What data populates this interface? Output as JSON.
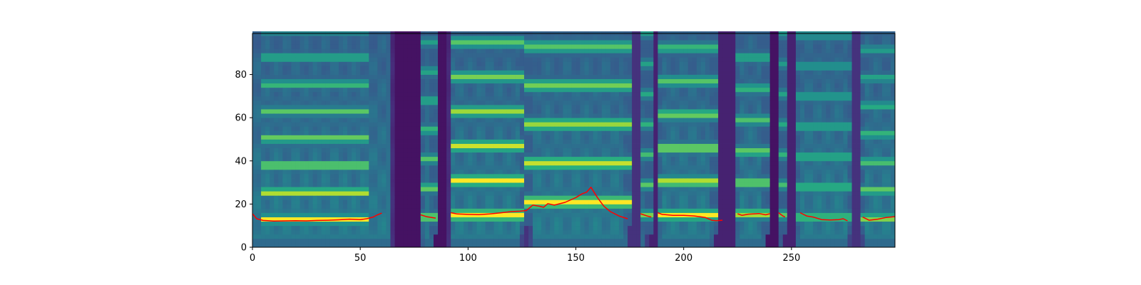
{
  "chart_data": {
    "type": "heatmap",
    "title": "",
    "xlabel": "",
    "ylabel": "",
    "xlim": [
      0,
      298
    ],
    "ylim": [
      0,
      99
    ],
    "x_ticks": [
      0,
      50,
      100,
      150,
      200,
      250
    ],
    "y_ticks": [
      0,
      20,
      40,
      60,
      80
    ],
    "x_tick_labels": [
      "0",
      "50",
      "100",
      "150",
      "200",
      "250"
    ],
    "y_tick_labels": [
      "0",
      "20",
      "40",
      "60",
      "80"
    ],
    "colormap": "viridis",
    "grid": false,
    "legend": "none",
    "harmonic_bands": [
      {
        "x": [
          4,
          53
        ],
        "y_start": 13,
        "spacing": 12.5,
        "intensity": 0.72
      },
      {
        "x": [
          78,
          86
        ],
        "y_start": 14,
        "spacing": 13.5,
        "intensity": 0.55
      },
      {
        "x": [
          92,
          126
        ],
        "y_start": 15,
        "spacing": 16,
        "intensity": 0.8
      },
      {
        "x": [
          127,
          175
        ],
        "y_start": 21,
        "spacing": 18,
        "intensity": 0.7
      },
      {
        "x": [
          180,
          185
        ],
        "y_start": 15,
        "spacing": 14,
        "intensity": 0.5
      },
      {
        "x": [
          188,
          215
        ],
        "y_start": 15,
        "spacing": 15.5,
        "intensity": 0.7
      },
      {
        "x": [
          225,
          240
        ],
        "y_start": 15.5,
        "spacing": 14.5,
        "intensity": 0.6
      },
      {
        "x": [
          244,
          247
        ],
        "y_start": 15,
        "spacing": 14,
        "intensity": 0.45
      },
      {
        "x": [
          252,
          278
        ],
        "y_start": 14,
        "spacing": 14,
        "intensity": 0.45
      },
      {
        "x": [
          283,
          298
        ],
        "y_start": 13.5,
        "spacing": 13,
        "intensity": 0.55
      }
    ],
    "dark_regions": [
      {
        "x": [
          66,
          77
        ],
        "intensity": 0.05
      },
      {
        "x": [
          85,
          90
        ],
        "intensity": 0.05
      },
      {
        "x": [
          126,
          128
        ],
        "intensity": 0.15
      },
      {
        "x": [
          175,
          179
        ],
        "intensity": 0.15
      },
      {
        "x": [
          184,
          187
        ],
        "intensity": 0.1
      },
      {
        "x": [
          215,
          223
        ],
        "intensity": 0.1
      },
      {
        "x": [
          239,
          243
        ],
        "intensity": 0.05
      },
      {
        "x": [
          247,
          251
        ],
        "intensity": 0.1
      },
      {
        "x": [
          278,
          282
        ],
        "intensity": 0.15
      }
    ],
    "series": [
      {
        "color": "#ff0000",
        "segments": [
          [
            [
              0,
              15.5
            ],
            [
              2,
              13.2
            ],
            [
              5,
              12.4
            ],
            [
              10,
              12.1
            ],
            [
              15,
              12.2
            ],
            [
              20,
              12.3
            ],
            [
              25,
              12.2
            ],
            [
              30,
              12.4
            ],
            [
              35,
              12.5
            ],
            [
              40,
              12.7
            ],
            [
              45,
              13.0
            ],
            [
              50,
              12.8
            ],
            [
              53,
              13.2
            ],
            [
              56,
              14.0
            ],
            [
              58,
              15.0
            ],
            [
              60,
              15.8
            ]
          ],
          [
            [
              78,
              15.0
            ],
            [
              81,
              14.1
            ],
            [
              85,
              13.5
            ]
          ],
          [
            [
              92,
              16.0
            ],
            [
              95,
              15.4
            ],
            [
              100,
              15.2
            ],
            [
              105,
              15.1
            ],
            [
              110,
              15.4
            ],
            [
              115,
              15.9
            ],
            [
              120,
              16.5
            ],
            [
              124,
              16.7
            ],
            [
              127,
              17.0
            ],
            [
              130,
              19.5
            ],
            [
              133,
              19.0
            ],
            [
              135,
              18.5
            ],
            [
              137,
              20.2
            ],
            [
              140,
              19.5
            ],
            [
              145,
              20.8
            ],
            [
              150,
              23.0
            ],
            [
              153,
              24.8
            ],
            [
              155,
              25.5
            ],
            [
              157,
              27.8
            ],
            [
              160,
              23.0
            ],
            [
              163,
              19.0
            ],
            [
              166,
              16.5
            ],
            [
              170,
              14.5
            ],
            [
              174,
              13.2
            ]
          ],
          [
            [
              180,
              15.5
            ],
            [
              183,
              14.5
            ],
            [
              185,
              14.0
            ]
          ],
          [
            [
              188,
              16.0
            ],
            [
              190,
              15.2
            ],
            [
              195,
              14.8
            ],
            [
              200,
              14.8
            ],
            [
              205,
              14.5
            ],
            [
              210,
              13.8
            ],
            [
              213,
              12.5
            ],
            [
              215,
              12.3
            ],
            [
              218,
              12.5
            ]
          ],
          [
            [
              225,
              15.5
            ],
            [
              227,
              14.8
            ],
            [
              230,
              15.3
            ],
            [
              235,
              15.6
            ],
            [
              238,
              15.0
            ],
            [
              240,
              15.5
            ]
          ],
          [
            [
              244,
              16.0
            ],
            [
              246,
              14.5
            ],
            [
              247,
              14.0
            ]
          ],
          [
            [
              254,
              16.0
            ],
            [
              257,
              14.5
            ],
            [
              260,
              14.0
            ],
            [
              264,
              12.8
            ],
            [
              268,
              12.6
            ],
            [
              272,
              12.8
            ],
            [
              274,
              13.2
            ],
            [
              276,
              12.2
            ]
          ],
          [
            [
              283,
              14.0
            ],
            [
              286,
              12.5
            ],
            [
              290,
              13.0
            ],
            [
              294,
              13.8
            ],
            [
              298,
              14.2
            ]
          ]
        ]
      }
    ]
  }
}
